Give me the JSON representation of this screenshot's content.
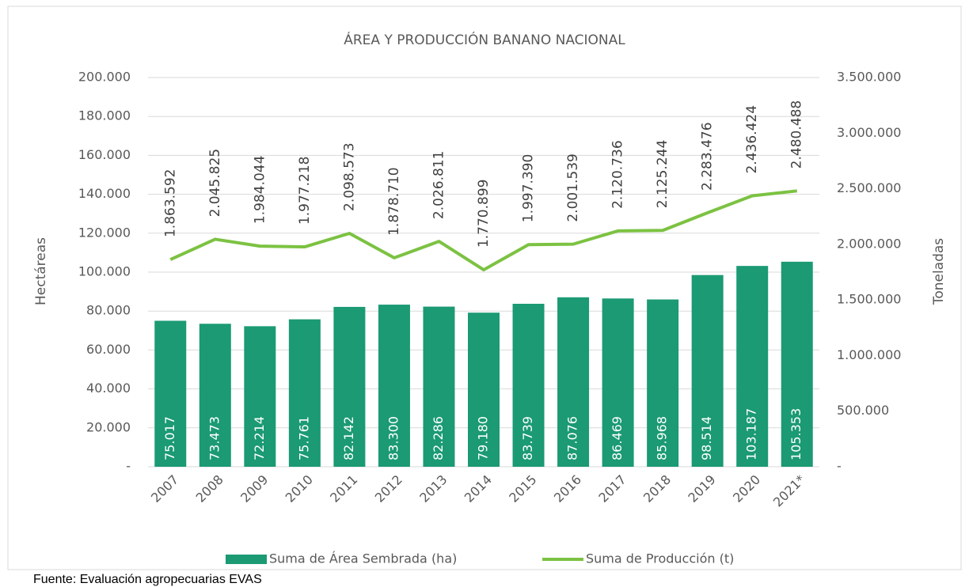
{
  "chart_data": {
    "type": "bar-line",
    "title": "ÁREA Y PRODUCCIÓN BANANO NACIONAL",
    "y_label": "Hectáreas",
    "y2_label": "Toneladas",
    "categories": [
      "2007",
      "2008",
      "2009",
      "2010",
      "2011",
      "2012",
      "2013",
      "2014",
      "2015",
      "2016",
      "2017",
      "2018",
      "2019",
      "2020",
      "2021*"
    ],
    "series": [
      {
        "name": "Suma de Área Sembrada (ha)",
        "type": "bar",
        "color": "#1b9a73",
        "values": [
          75017,
          73473,
          72214,
          75761,
          82142,
          83300,
          82286,
          79180,
          83739,
          87076,
          86469,
          85968,
          98514,
          103187,
          105353
        ],
        "value_labels": [
          "75.017",
          "73.473",
          "72.214",
          "75.761",
          "82.142",
          "83.300",
          "82.286",
          "79.180",
          "83.739",
          "87.076",
          "86.469",
          "85.968",
          "98.514",
          "103.187",
          "105.353"
        ]
      },
      {
        "name": "Suma de Producción (t)",
        "type": "line",
        "axis": "y2",
        "color": "#7cc242",
        "values": [
          1863592,
          2045825,
          1984044,
          1977218,
          2098573,
          1878710,
          2026811,
          1770899,
          1997390,
          2001539,
          2120736,
          2125244,
          2283476,
          2436424,
          2480488
        ],
        "value_labels": [
          "1.863.592",
          "2.045.825",
          "1.984.044",
          "1.977.218",
          "2.098.573",
          "1.878.710",
          "2.026.811",
          "1.770.899",
          "1.997.390",
          "2.001.539",
          "2.120.736",
          "2.125.244",
          "2.283.476",
          "2.436.424",
          "2.480.488"
        ]
      }
    ],
    "ylim": [
      0,
      200000
    ],
    "yticks": [
      {
        "value": 0,
        "label": "-"
      },
      {
        "value": 20000,
        "label": "20.000"
      },
      {
        "value": 40000,
        "label": "40.000"
      },
      {
        "value": 60000,
        "label": "60.000"
      },
      {
        "value": 80000,
        "label": "80.000"
      },
      {
        "value": 100000,
        "label": "100.000"
      },
      {
        "value": 120000,
        "label": "120.000"
      },
      {
        "value": 140000,
        "label": "140.000"
      },
      {
        "value": 160000,
        "label": "160.000"
      },
      {
        "value": 180000,
        "label": "180.000"
      },
      {
        "value": 200000,
        "label": "200.000"
      }
    ],
    "y2lim": [
      0,
      3500000
    ],
    "y2ticks": [
      {
        "value": 0,
        "label": "-"
      },
      {
        "value": 500000,
        "label": "500.000"
      },
      {
        "value": 1000000,
        "label": "1.000.000"
      },
      {
        "value": 1500000,
        "label": "1.500.000"
      },
      {
        "value": 2000000,
        "label": "2.000.000"
      },
      {
        "value": 2500000,
        "label": "2.500.000"
      },
      {
        "value": 3000000,
        "label": "3.000.000"
      },
      {
        "value": 3500000,
        "label": "3.500.000"
      }
    ],
    "grid": true,
    "legend": "bottom"
  },
  "footer": {
    "source": "Fuente: Evaluación agropecuarias EVAS"
  }
}
